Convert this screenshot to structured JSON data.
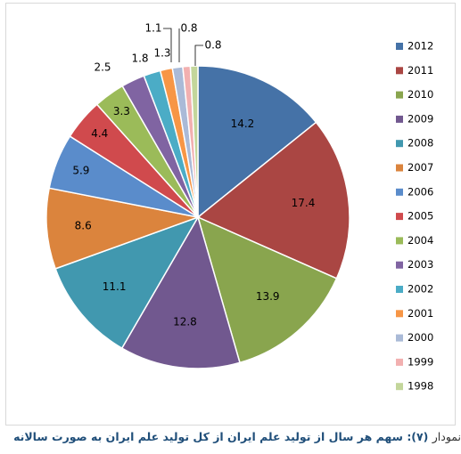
{
  "chart_data": {
    "type": "pie",
    "categories": [
      "2012",
      "2011",
      "2010",
      "2009",
      "2008",
      "2007",
      "2006",
      "2005",
      "2004",
      "2003",
      "2002",
      "2001",
      "2000",
      "1999",
      "1998"
    ],
    "values": [
      14.2,
      17.4,
      13.9,
      12.8,
      11.1,
      8.6,
      5.9,
      4.4,
      3.3,
      2.5,
      1.8,
      1.3,
      1.1,
      0.8,
      0.8
    ],
    "value_labels": [
      "14.2",
      "17.4",
      "13.9",
      "12.8",
      "11.1",
      "8.6",
      "5.9",
      "4.4",
      "3.3",
      "2.5",
      "1.8",
      "1.3",
      "1.1",
      "0.8",
      "0.8"
    ],
    "colors": [
      "#4572a7",
      "#aa4643",
      "#89a54e",
      "#71588f",
      "#4198af",
      "#db843d",
      "#5a8ccb",
      "#d04a4d",
      "#9bbb59",
      "#8064a2",
      "#4bacc6",
      "#f79646",
      "#aabad7",
      "#f2b0b0",
      "#c3d69b"
    ],
    "legend": [
      "2012",
      "2011",
      "2010",
      "2009",
      "2008",
      "2007",
      "2006",
      "2005",
      "2004",
      "2003",
      "2002",
      "2001",
      "2000",
      "1999",
      "1998"
    ],
    "legend_position": "right"
  },
  "caption": {
    "prefix": "نمودار",
    "number": "(۷):",
    "text": "سهم هر سال از تولید علم ایران از کل تولید علم ایران به صورت سالانه"
  }
}
